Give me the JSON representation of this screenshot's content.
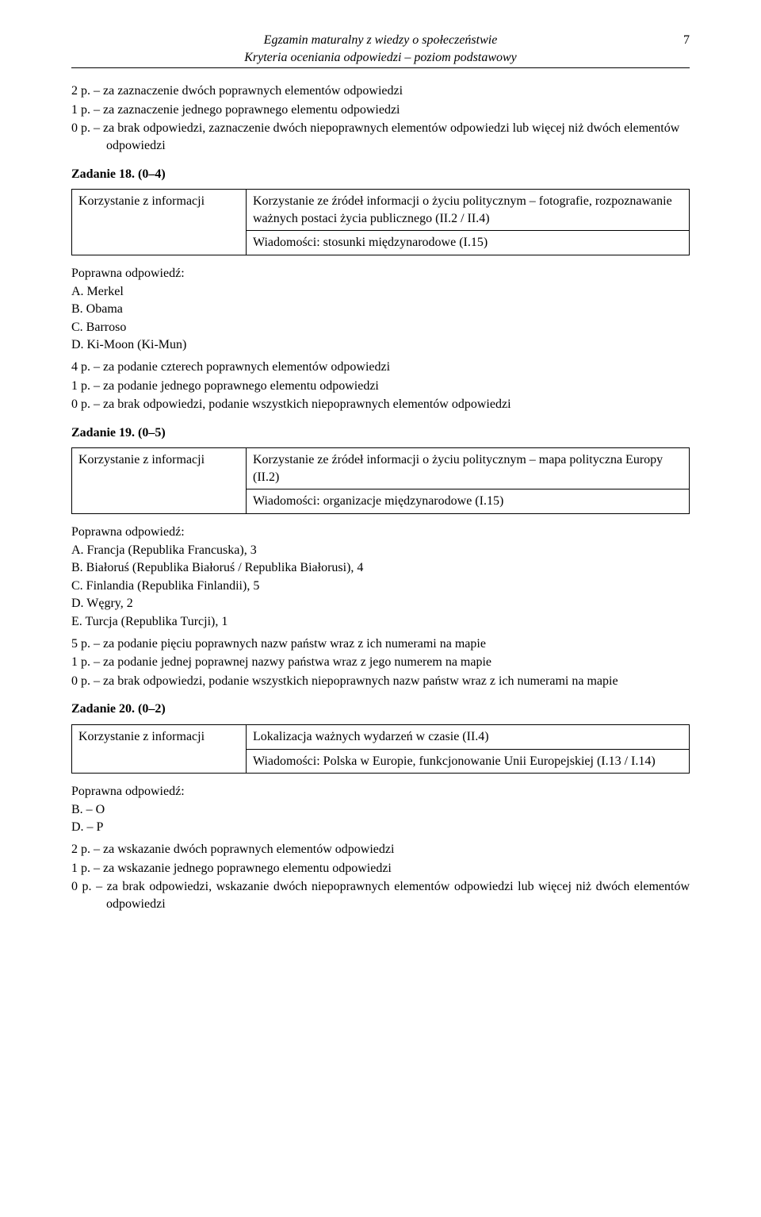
{
  "header": {
    "line1": "Egzamin maturalny z wiedzy o społeczeństwie",
    "line2": "Kryteria oceniania odpowiedzi – poziom podstawowy",
    "page": "7"
  },
  "intro_scoring": {
    "l1": "2 p. – za zaznaczenie dwóch poprawnych elementów odpowiedzi",
    "l2": "1 p. – za zaznaczenie jednego poprawnego elementu odpowiedzi",
    "l3": "0 p. – za brak odpowiedzi, zaznaczenie dwóch niepoprawnych elementów odpowiedzi lub więcej niż dwóch elementów odpowiedzi"
  },
  "task18": {
    "title": "Zadanie 18. (0–4)",
    "box_left": "Korzystanie z informacji",
    "box_r1": "Korzystanie ze źródeł informacji o życiu politycznym – fotografie, rozpoznawanie ważnych postaci życia publicznego (II.2 / II.4)",
    "box_r2": "Wiadomości: stosunki międzynarodowe (I.15)",
    "correct_label": "Poprawna odpowiedź:",
    "answers": {
      "a": "A. Merkel",
      "b": "B. Obama",
      "c": "C. Barroso",
      "d": "D. Ki-Moon (Ki-Mun)"
    },
    "scoring": {
      "l1": "4 p. – za podanie czterech poprawnych elementów odpowiedzi",
      "l2": "1 p. – za podanie jednego poprawnego elementu odpowiedzi",
      "l3": "0 p. – za brak odpowiedzi, podanie wszystkich niepoprawnych elementów odpowiedzi"
    }
  },
  "task19": {
    "title": "Zadanie 19. (0–5)",
    "box_left": "Korzystanie z informacji",
    "box_r1": "Korzystanie ze źródeł informacji o życiu politycznym – mapa polityczna Europy (II.2)",
    "box_r2": "Wiadomości: organizacje międzynarodowe (I.15)",
    "correct_label": "Poprawna odpowiedź:",
    "answers": {
      "a": "A. Francja (Republika Francuska), 3",
      "b": "B. Białoruś (Republika Białoruś / Republika Białorusi), 4",
      "c": "C. Finlandia (Republika Finlandii), 5",
      "d": "D. Węgry, 2",
      "e": "E. Turcja (Republika Turcji), 1"
    },
    "scoring": {
      "l1": "5 p. – za podanie pięciu poprawnych nazw państw wraz z ich numerami na mapie",
      "l2": "1 p. – za podanie jednej poprawnej nazwy państwa wraz z jego numerem na mapie",
      "l3": "0 p. – za brak odpowiedzi, podanie wszystkich niepoprawnych nazw państw wraz z ich numerami na mapie"
    }
  },
  "task20": {
    "title": "Zadanie 20. (0–2)",
    "box_left": "Korzystanie z informacji",
    "box_r1": "Lokalizacja ważnych wydarzeń w czasie (II.4)",
    "box_r2": "Wiadomości: Polska w Europie, funkcjonowanie Unii Europejskiej (I.13 / I.14)",
    "correct_label": "Poprawna odpowiedź:",
    "answers": {
      "b": "B. – O",
      "d": "D. – P"
    },
    "scoring": {
      "l1": "2 p. – za wskazanie dwóch poprawnych elementów odpowiedzi",
      "l2": "1 p. – za wskazanie jednego poprawnego elementu odpowiedzi",
      "l3": "0 p. – za brak odpowiedzi, wskazanie dwóch niepoprawnych elementów odpowiedzi lub więcej niż dwóch elementów odpowiedzi"
    }
  }
}
